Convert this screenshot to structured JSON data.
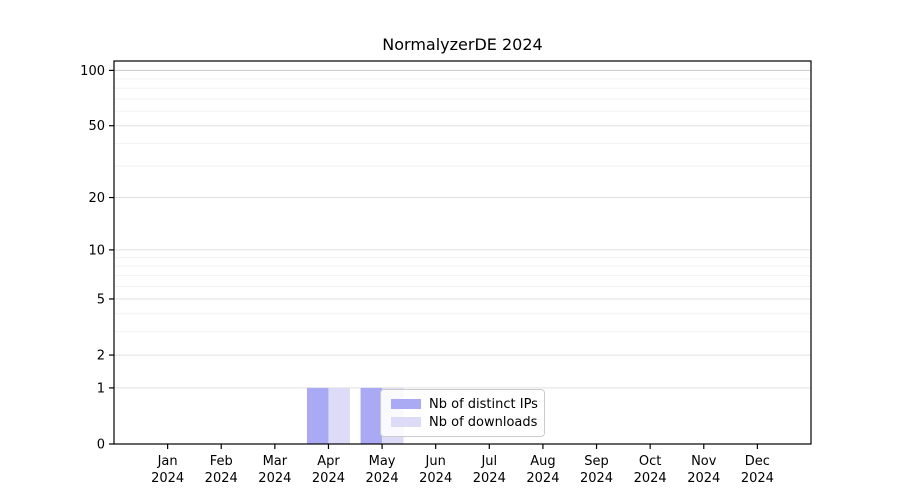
{
  "title": "NormalyzerDE 2024",
  "chart_data": {
    "type": "bar",
    "title": "NormalyzerDE 2024",
    "y_scale": "log1p",
    "grid": true,
    "categories": [
      "Jan",
      "Feb",
      "Mar",
      "Apr",
      "May",
      "Jun",
      "Jul",
      "Aug",
      "Sep",
      "Oct",
      "Nov",
      "Dec"
    ],
    "x_sublabel": "2024",
    "series": [
      {
        "name": "Nb of distinct IPs",
        "color": "#a9a9f4",
        "values": [
          0,
          0,
          0,
          1,
          1,
          0,
          0,
          0,
          0,
          0,
          0,
          0
        ]
      },
      {
        "name": "Nb of downloads",
        "color": "#dcdcf8",
        "values": [
          0,
          0,
          0,
          1,
          1,
          0,
          0,
          0,
          0,
          0,
          0,
          0
        ]
      }
    ],
    "y_ticks": [
      0,
      1,
      2,
      5,
      10,
      20,
      50,
      100
    ],
    "y_minor_ticks": [
      3,
      4,
      6,
      7,
      8,
      9,
      30,
      40,
      60,
      70,
      80,
      90
    ],
    "ylim": [
      0,
      110
    ],
    "legend_position": "inside-bottom-center-left",
    "colors": {
      "axis": "#000000",
      "tick_text": "#000000",
      "gridline_top": "#c9c9c9",
      "gridline_major": "#e0e0e0",
      "gridline_minor": "#f2f2f2"
    }
  }
}
